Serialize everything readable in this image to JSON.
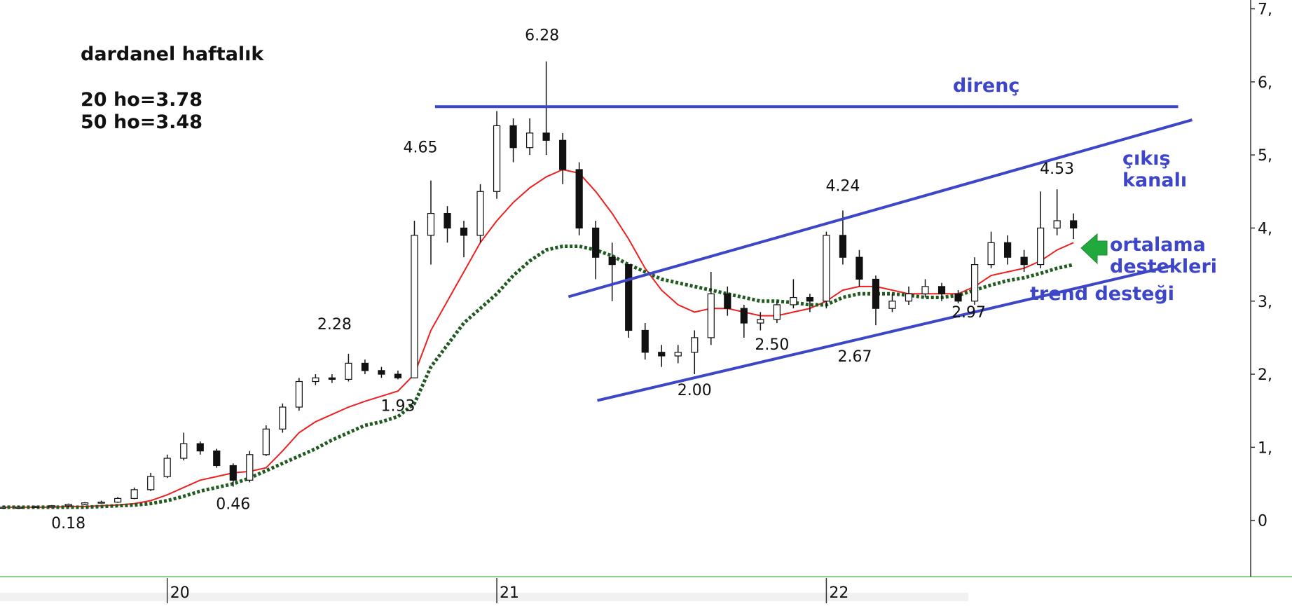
{
  "chart_data": {
    "type": "candlestick",
    "title": "dardanel haftalık",
    "notes": [
      "20 ho=3.78",
      "50 ho=3.48"
    ],
    "x": [
      2019.5,
      2019.55,
      2019.6,
      2019.65,
      2019.7,
      2019.75,
      2019.8,
      2019.85,
      2019.9,
      2019.95,
      2020,
      2020.05,
      2020.1,
      2020.15,
      2020.2,
      2020.25,
      2020.3,
      2020.35,
      2020.4,
      2020.45,
      2020.5,
      2020.55,
      2020.6,
      2020.65,
      2020.7,
      2020.75,
      2020.8,
      2020.85,
      2020.9,
      2020.95,
      2021,
      2021.05,
      2021.1,
      2021.15,
      2021.2,
      2021.25,
      2021.3,
      2021.35,
      2021.4,
      2021.45,
      2021.5,
      2021.55,
      2021.6,
      2021.65,
      2021.7,
      2021.75,
      2021.8,
      2021.85,
      2021.9,
      2021.95,
      2022,
      2022.05,
      2022.1,
      2022.15,
      2022.2,
      2022.25,
      2022.3,
      2022.35,
      2022.4,
      2022.45,
      2022.5,
      2022.55,
      2022.6,
      2022.65,
      2022.7,
      2022.75
    ],
    "open": [
      0.17,
      0.18,
      0.18,
      0.19,
      0.2,
      0.22,
      0.24,
      0.25,
      0.3,
      0.42,
      0.6,
      0.85,
      1.05,
      0.95,
      0.75,
      0.55,
      0.9,
      1.25,
      1.55,
      1.9,
      1.95,
      1.93,
      2.15,
      2.05,
      2.0,
      1.95,
      3.9,
      4.2,
      4.0,
      3.9,
      4.5,
      5.4,
      5.1,
      5.3,
      5.2,
      4.8,
      4.0,
      3.6,
      3.5,
      2.6,
      2.3,
      2.25,
      2.3,
      2.5,
      3.1,
      2.9,
      2.7,
      2.75,
      2.95,
      3.05,
      3.0,
      3.9,
      3.6,
      3.3,
      2.9,
      3.0,
      3.1,
      3.2,
      3.1,
      3.0,
      3.5,
      3.8,
      3.6,
      3.5,
      4.0,
      4.1
    ],
    "high": [
      0.19,
      0.19,
      0.2,
      0.21,
      0.23,
      0.25,
      0.27,
      0.32,
      0.45,
      0.65,
      0.9,
      1.2,
      1.08,
      0.98,
      0.78,
      0.95,
      1.3,
      1.6,
      1.95,
      2.0,
      2.0,
      2.28,
      2.2,
      2.1,
      2.05,
      4.1,
      4.65,
      4.3,
      4.1,
      4.6,
      5.6,
      5.5,
      5.5,
      6.28,
      5.3,
      4.9,
      4.1,
      3.8,
      3.5,
      2.7,
      2.4,
      2.4,
      2.6,
      3.4,
      3.2,
      2.95,
      2.85,
      3.0,
      3.3,
      3.1,
      3.95,
      4.24,
      3.7,
      3.35,
      3.1,
      3.2,
      3.3,
      3.25,
      3.15,
      3.6,
      3.95,
      3.9,
      3.7,
      4.5,
      4.53,
      4.2
    ],
    "low": [
      0.16,
      0.17,
      0.17,
      0.18,
      0.18,
      0.21,
      0.23,
      0.24,
      0.29,
      0.4,
      0.58,
      0.82,
      0.9,
      0.72,
      0.46,
      0.52,
      0.88,
      1.2,
      1.5,
      1.85,
      1.88,
      1.9,
      2.0,
      1.95,
      1.93,
      1.95,
      3.5,
      3.8,
      3.6,
      3.8,
      4.4,
      4.9,
      5.0,
      5.0,
      4.6,
      3.9,
      3.3,
      3.0,
      2.5,
      2.2,
      2.1,
      2.15,
      2.0,
      2.4,
      2.8,
      2.5,
      2.6,
      2.7,
      2.9,
      2.85,
      2.9,
      3.5,
      3.2,
      2.67,
      2.85,
      2.95,
      3.05,
      3.0,
      2.97,
      2.95,
      3.45,
      3.5,
      3.4,
      3.45,
      3.9,
      3.85
    ],
    "close": [
      0.18,
      0.18,
      0.19,
      0.2,
      0.22,
      0.24,
      0.25,
      0.3,
      0.42,
      0.6,
      0.85,
      1.05,
      0.95,
      0.75,
      0.55,
      0.9,
      1.25,
      1.55,
      1.9,
      1.95,
      1.93,
      2.15,
      2.05,
      2.0,
      1.95,
      3.9,
      4.2,
      4.0,
      3.9,
      4.5,
      5.4,
      5.1,
      5.3,
      5.2,
      4.8,
      4.0,
      3.6,
      3.5,
      2.6,
      2.3,
      2.25,
      2.3,
      2.5,
      3.1,
      2.9,
      2.7,
      2.75,
      2.95,
      3.05,
      3.0,
      3.9,
      3.6,
      3.3,
      2.9,
      3.0,
      3.1,
      3.2,
      3.1,
      3.0,
      3.5,
      3.8,
      3.6,
      3.5,
      4.0,
      4.1,
      4.0
    ],
    "moving_averages": [
      {
        "color": "#ee2020",
        "style": "solid",
        "values": [
          0.18,
          0.18,
          0.18,
          0.18,
          0.19,
          0.19,
          0.2,
          0.21,
          0.23,
          0.27,
          0.35,
          0.45,
          0.55,
          0.6,
          0.65,
          0.67,
          0.72,
          0.95,
          1.2,
          1.35,
          1.45,
          1.55,
          1.63,
          1.7,
          1.77,
          2.0,
          2.6,
          3.0,
          3.4,
          3.8,
          4.1,
          4.35,
          4.55,
          4.7,
          4.8,
          4.75,
          4.5,
          4.2,
          3.85,
          3.45,
          3.15,
          2.95,
          2.85,
          2.9,
          2.9,
          2.85,
          2.8,
          2.8,
          2.85,
          2.9,
          3.0,
          3.15,
          3.2,
          3.2,
          3.15,
          3.1,
          3.1,
          3.1,
          3.1,
          3.2,
          3.35,
          3.4,
          3.45,
          3.55,
          3.7,
          3.8
        ]
      },
      {
        "color": "#1f5a1f",
        "style": "dotted",
        "values": [
          0.18,
          0.18,
          0.18,
          0.18,
          0.18,
          0.18,
          0.19,
          0.2,
          0.21,
          0.23,
          0.27,
          0.33,
          0.4,
          0.45,
          0.5,
          0.58,
          0.68,
          0.78,
          0.88,
          0.98,
          1.1,
          1.2,
          1.3,
          1.35,
          1.42,
          1.6,
          2.1,
          2.4,
          2.7,
          2.9,
          3.1,
          3.35,
          3.55,
          3.7,
          3.75,
          3.75,
          3.7,
          3.62,
          3.5,
          3.4,
          3.3,
          3.25,
          3.2,
          3.15,
          3.1,
          3.05,
          3.0,
          3.0,
          2.98,
          2.95,
          2.95,
          3.05,
          3.1,
          3.1,
          3.1,
          3.08,
          3.05,
          3.05,
          3.08,
          3.15,
          3.22,
          3.28,
          3.32,
          3.38,
          3.45,
          3.5
        ]
      }
    ],
    "lines": [
      {
        "label": [
          "direnç"
        ],
        "color": "#3d45c8",
        "x": [
          2020.8125,
          2023.0675
        ],
        "values": [
          5.66,
          5.66
        ]
      },
      {
        "label": [
          "çıkış",
          "kanalı"
        ],
        "color": "#3d45c8",
        "x": [
          2021.2175,
          2023.11
        ],
        "values": [
          3.06,
          5.48
        ]
      },
      {
        "label": [
          "trend desteği"
        ],
        "color": "#3d45c8",
        "x": [
          2021.305,
          2023.055
        ],
        "values": [
          1.64,
          3.49
        ]
      }
    ],
    "support_note": [
      "ortalama",
      "destekleri"
    ],
    "price_labels": [
      {
        "x": 2021.15,
        "value": 6.28,
        "label": "6.28"
      },
      {
        "x": 2020.8,
        "value": 4.65,
        "label": "4.65"
      },
      {
        "x": 2020.55,
        "value": 2.28,
        "label": "2.28"
      },
      {
        "x": 2020.7,
        "value": 1.93,
        "label": "1.93"
      },
      {
        "x": 2020.2,
        "value": 0.46,
        "label": "0.46"
      },
      {
        "x": 2019.7,
        "value": 0.18,
        "label": "0.18"
      },
      {
        "x": 2021.6,
        "value": 2,
        "label": "2.00"
      },
      {
        "x": 2021.75,
        "value": 2.5,
        "label": "2.50"
      },
      {
        "x": 2022.15,
        "value": 2.67,
        "label": "2.67"
      },
      {
        "x": 2022.4,
        "value": 2.97,
        "label": "2.97"
      },
      {
        "x": 2022.05,
        "value": 4.24,
        "label": "4.24"
      },
      {
        "x": 2022.7,
        "value": 4.53,
        "label": "4.53"
      }
    ],
    "xlim": [
      2019.4925,
      2023.2875
    ],
    "xticks": [
      {
        "value": 2020,
        "label": "20"
      },
      {
        "value": 2021,
        "label": "21"
      },
      {
        "value": 2022,
        "label": "22"
      }
    ],
    "ylim": [
      -0.77,
      7.12
    ],
    "yticks": [
      0,
      {
        "value": 1,
        "label": "1,"
      },
      {
        "value": 2,
        "label": "2,"
      },
      {
        "value": 3,
        "label": "3,"
      },
      {
        "value": 4,
        "label": "4,"
      },
      {
        "value": 5,
        "label": "5,"
      },
      {
        "value": 6,
        "label": "6,"
      },
      {
        "value": 7,
        "label": "7,"
      }
    ]
  }
}
